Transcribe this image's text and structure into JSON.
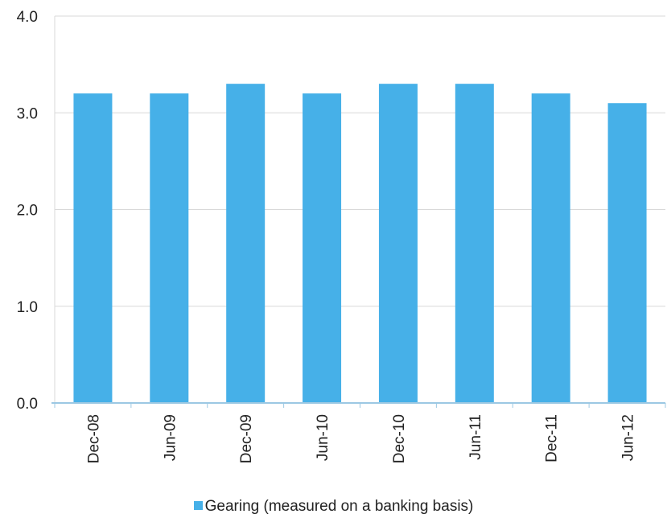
{
  "chart_data": {
    "type": "bar",
    "categories": [
      "Dec-08",
      "Jun-09",
      "Dec-09",
      "Jun-10",
      "Dec-10",
      "Jun-11",
      "Dec-11",
      "Jun-12"
    ],
    "series": [
      {
        "name": "Gearing (measured on a banking basis)",
        "values": [
          3.2,
          3.2,
          3.3,
          3.2,
          3.3,
          3.3,
          3.2,
          3.1
        ]
      }
    ],
    "ylim": [
      0,
      4
    ],
    "yticks": [
      "0.0",
      "1.0",
      "2.0",
      "3.0",
      "4.0"
    ],
    "grid": true,
    "legend_position": "bottom",
    "colors": {
      "bar": "#46b0e8",
      "grid": "#d9d9d9",
      "axis": "#9cc8e3"
    }
  }
}
